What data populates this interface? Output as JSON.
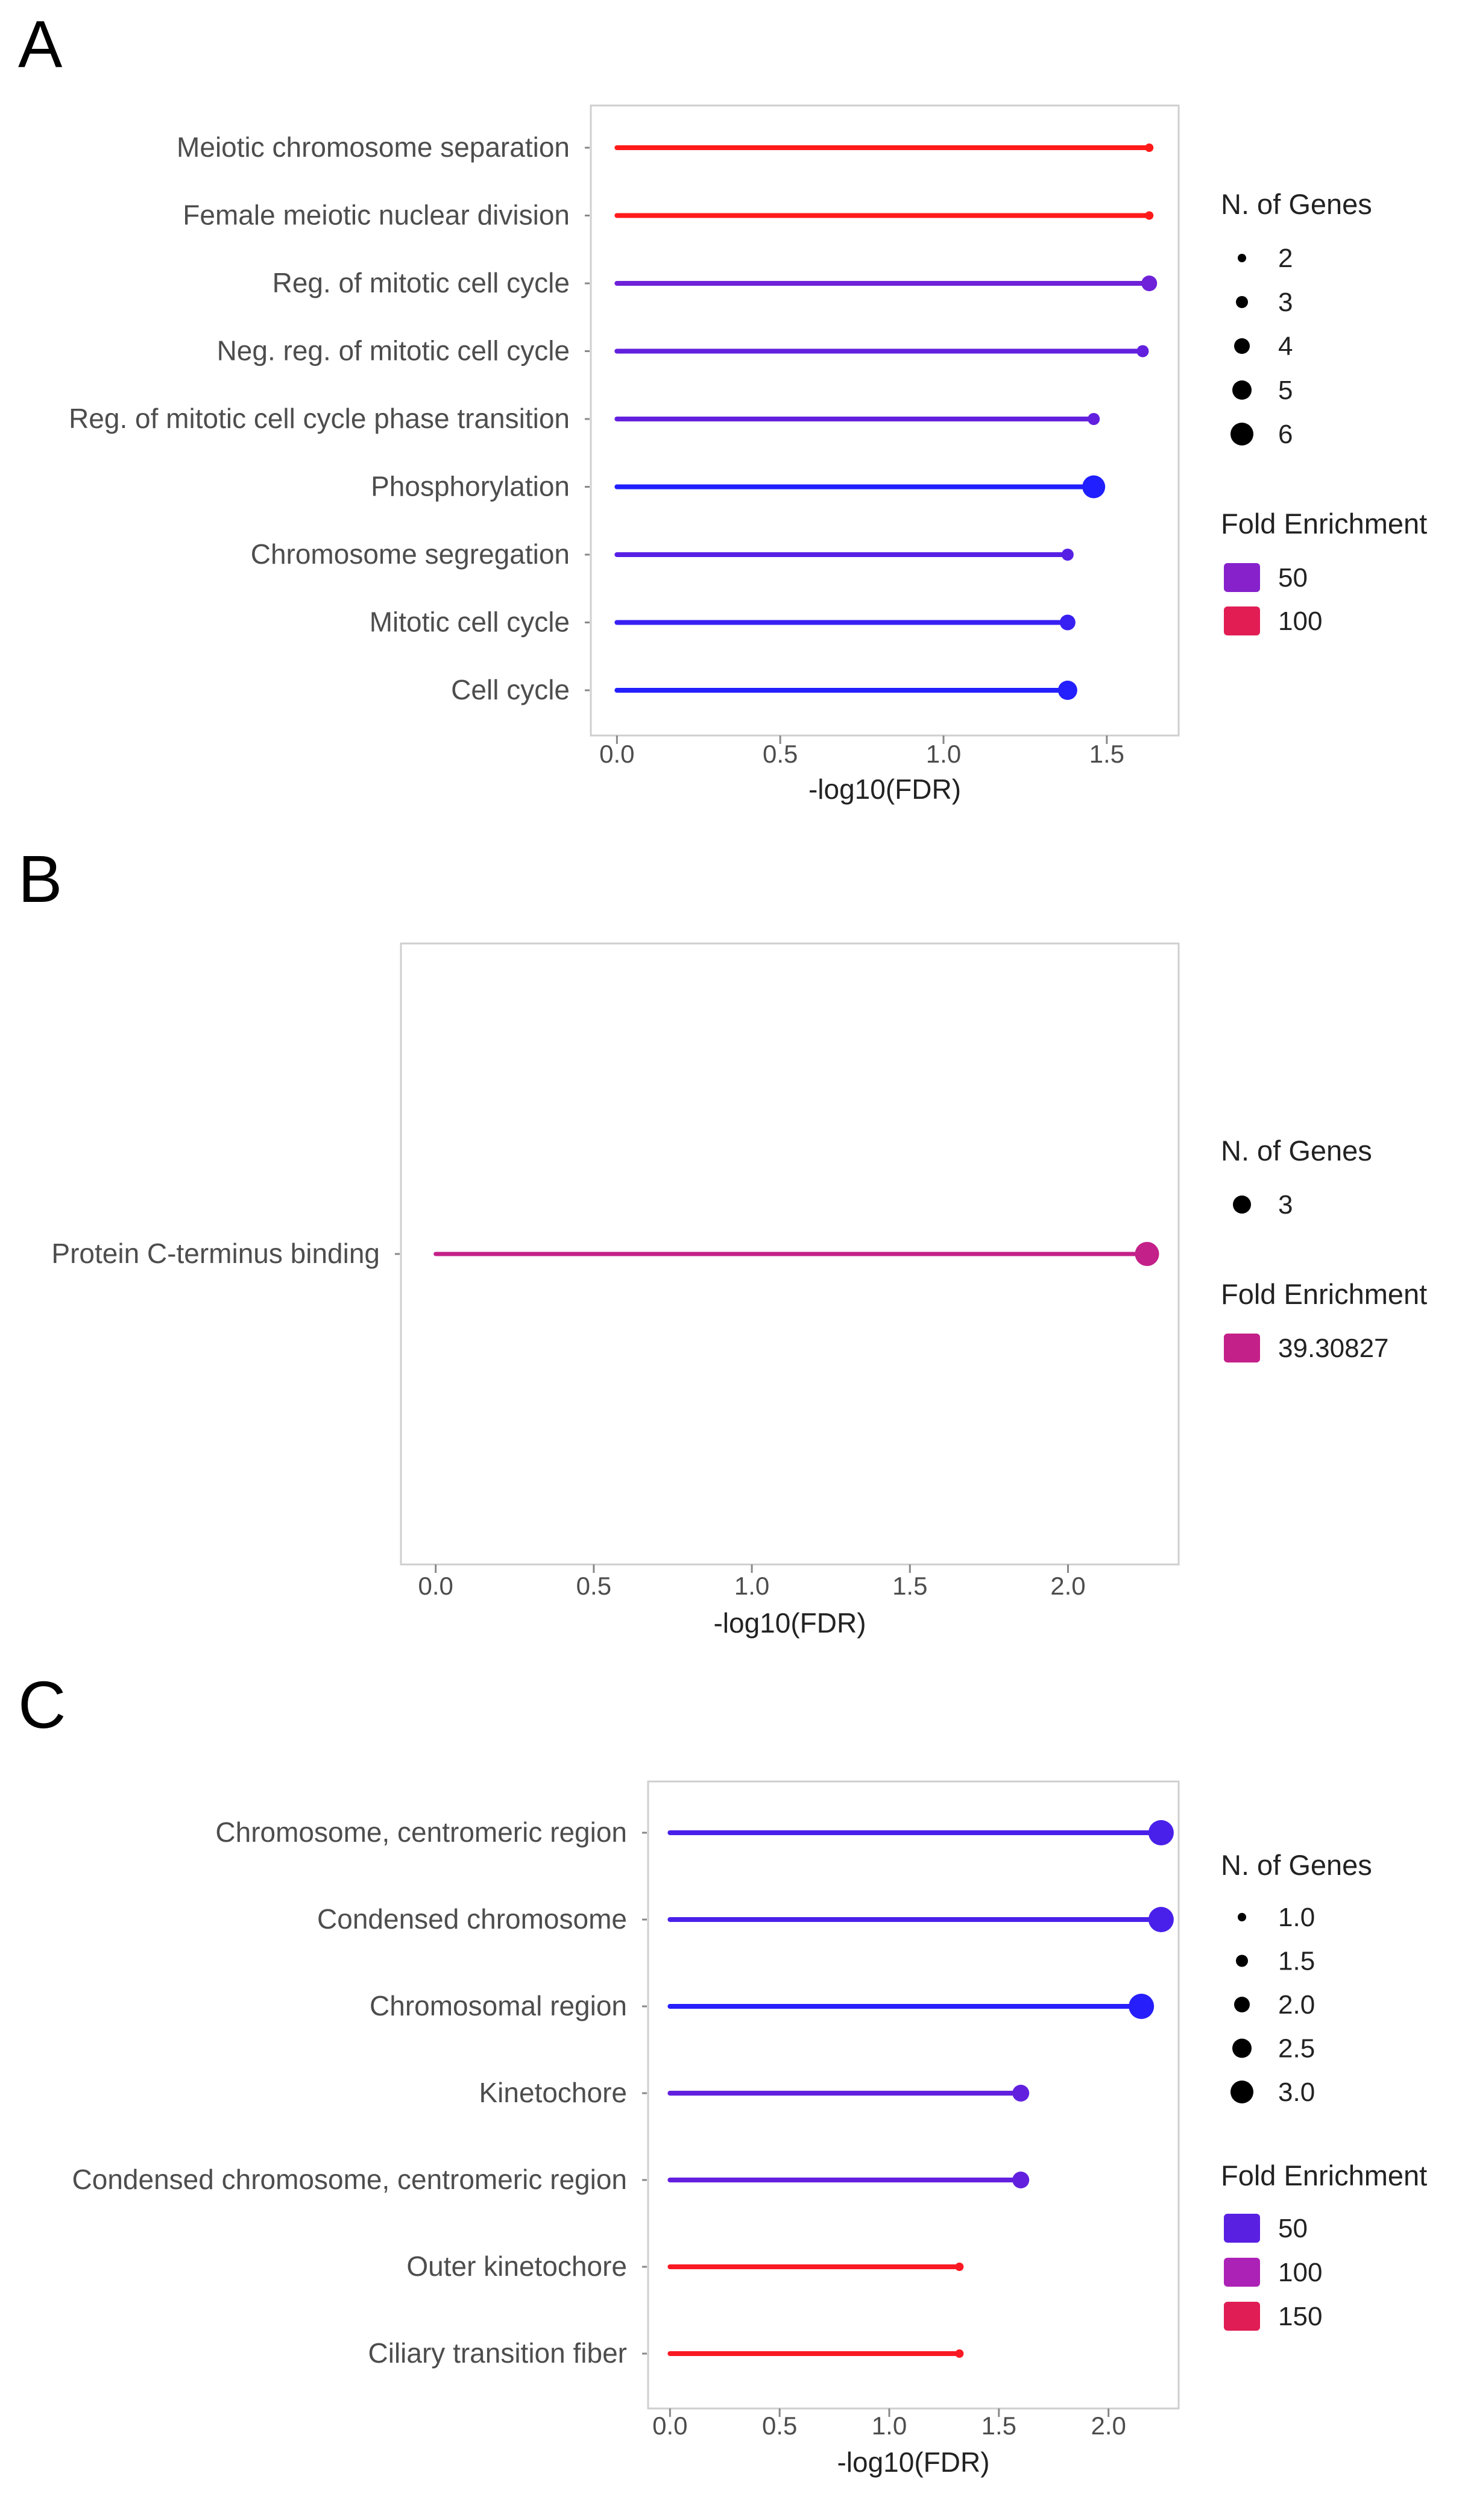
{
  "colors": {
    "low": "#1f1fff",
    "mid": "#aa22bb",
    "high": "#ff1a1a",
    "frame": "#cfcfcf",
    "text": "#4d4d4d"
  },
  "panels": [
    {
      "letter": "A",
      "legend": {
        "size_title": "N. of Genes",
        "color_title": "Fold Enrichment"
      }
    },
    {
      "letter": "B",
      "legend": {
        "size_title": "N. of Genes",
        "color_title": "Fold Enrichment"
      }
    },
    {
      "letter": "C",
      "legend": {
        "size_title": "N. of Genes",
        "color_title": "Fold Enrichment"
      }
    }
  ],
  "chart_data": [
    {
      "type": "lollipop",
      "panel": "A",
      "xlabel": "-log10(FDR)",
      "xlim": [
        -0.08,
        1.72
      ],
      "xticks": [
        0.0,
        0.5,
        1.0,
        1.5
      ],
      "xtick_labels": [
        "0.0",
        "0.5",
        "1.0",
        "1.5"
      ],
      "categories": [
        "Meiotic chromosome separation",
        "Female meiotic nuclear division",
        "Reg. of mitotic cell cycle",
        "Neg. reg. of mitotic cell cycle",
        "Reg. of mitotic cell cycle phase transition",
        "Phosphorylation",
        "Chromosome segregation",
        "Mitotic cell cycle",
        "Cell cycle"
      ],
      "values": [
        1.63,
        1.63,
        1.63,
        1.61,
        1.46,
        1.46,
        1.38,
        1.38,
        1.38
      ],
      "n_genes": [
        2,
        2,
        4,
        3,
        3,
        6,
        3,
        4,
        5
      ],
      "fold_enrichment": [
        120,
        120,
        40,
        35,
        35,
        8,
        30,
        18,
        10
      ],
      "size_legend": {
        "title": "N. of Genes",
        "labels": [
          "2",
          "3",
          "4",
          "5",
          "6"
        ],
        "values": [
          2,
          3,
          4,
          5,
          6
        ]
      },
      "color_legend": {
        "title": "Fold Enrichment",
        "labels": [
          "50",
          "100"
        ],
        "values": [
          50,
          100
        ]
      },
      "color_range": [
        8,
        120
      ],
      "size_range": [
        2,
        6
      ]
    },
    {
      "type": "lollipop",
      "panel": "B",
      "xlabel": "-log10(FDR)",
      "xlim": [
        -0.11,
        2.35
      ],
      "xticks": [
        0.0,
        0.5,
        1.0,
        1.5,
        2.0
      ],
      "xtick_labels": [
        "0.0",
        "0.5",
        "1.0",
        "1.5",
        "2.0"
      ],
      "categories": [
        "Protein C-terminus binding"
      ],
      "values": [
        2.25
      ],
      "n_genes": [
        3
      ],
      "fold_enrichment": [
        39.30827
      ],
      "size_legend": {
        "title": "N. of Genes",
        "labels": [
          "3"
        ],
        "values": [
          3
        ]
      },
      "color_legend": {
        "title": "Fold Enrichment",
        "labels": [
          "39.30827"
        ],
        "values": [
          39.30827
        ]
      },
      "color_range": [
        0,
        60
      ],
      "size_range": [
        3,
        3
      ]
    },
    {
      "type": "lollipop",
      "panel": "C",
      "xlabel": "-log10(FDR)",
      "xlim": [
        -0.1,
        2.32
      ],
      "xticks": [
        0.0,
        0.5,
        1.0,
        1.5,
        2.0
      ],
      "xtick_labels": [
        "0.0",
        "0.5",
        "1.0",
        "1.5",
        "2.0"
      ],
      "categories": [
        "Chromosome, centromeric region",
        "Condensed chromosome",
        "Chromosomal region",
        "Kinetochore",
        "Condensed chromosome, centromeric region",
        "Outer kinetochore",
        "Ciliary transition fiber"
      ],
      "values": [
        2.24,
        2.24,
        2.15,
        1.6,
        1.6,
        1.32,
        1.32
      ],
      "n_genes": [
        3,
        3,
        3,
        2,
        2,
        1,
        1
      ],
      "fold_enrichment": [
        40,
        40,
        20,
        55,
        55,
        175,
        175
      ],
      "size_legend": {
        "title": "N. of Genes",
        "labels": [
          "1.0",
          "1.5",
          "2.0",
          "2.5",
          "3.0"
        ],
        "values": [
          1.0,
          1.5,
          2.0,
          2.5,
          3.0
        ]
      },
      "color_legend": {
        "title": "Fold Enrichment",
        "labels": [
          "50",
          "100",
          "150"
        ],
        "values": [
          50,
          100,
          150
        ]
      },
      "color_range": [
        15,
        180
      ],
      "size_range": [
        1,
        3
      ]
    }
  ]
}
